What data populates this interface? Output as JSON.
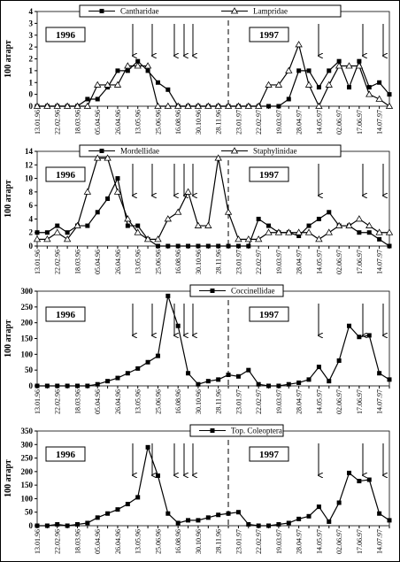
{
  "chart_data": [
    {
      "type": "line",
      "y_label": "100 атарт",
      "annotations": [
        "1996",
        "1997"
      ],
      "categories": [
        "13.01.96",
        null,
        "22.02.96",
        null,
        "18.03.96",
        null,
        "05.04.96",
        null,
        "26.04.96",
        null,
        "13.05.96",
        null,
        "25.06.96",
        null,
        "16.08.96",
        null,
        "30.10.96",
        null,
        "28.11.96",
        null,
        "23.01.97",
        null,
        "22.02.97",
        null,
        "19.03.97",
        null,
        "28.04.97",
        null,
        "14.05.97",
        null,
        "02.06.97",
        null,
        "17.06.97",
        null,
        "14.07.97",
        null
      ],
      "series": [
        {
          "name": "Cantharidae",
          "color": "#000000",
          "marker": "square",
          "values": [
            0,
            0,
            0,
            0,
            0,
            0.3,
            0.3,
            0.8,
            1.5,
            1.5,
            1.9,
            1.5,
            1,
            0.7,
            0,
            0,
            0,
            0,
            0,
            0,
            0,
            0,
            0,
            0,
            0,
            0.3,
            1.5,
            1.5,
            0.8,
            1.5,
            1.9,
            0.8,
            1.9,
            0.8,
            1,
            0.5
          ]
        },
        {
          "name": "Lampridae",
          "color": "#000000",
          "marker": "triangle",
          "values": [
            0,
            0,
            0,
            0,
            0,
            0,
            0.9,
            0.9,
            0.9,
            1.7,
            1.7,
            1.7,
            0,
            0,
            0,
            0,
            0,
            0,
            0,
            0,
            0,
            0,
            0,
            0.9,
            0.9,
            1.5,
            2.6,
            0.9,
            0,
            0.9,
            1.7,
            1.7,
            1.7,
            0.5,
            0.3,
            0
          ]
        }
      ],
      "ylim": [
        0,
        4
      ],
      "yticks": [
        0,
        {
          "value": 0.5,
          "label": "0"
        },
        1,
        {
          "value": 1.5,
          "label": "1"
        },
        2,
        {
          "value": 2.5,
          "label": "2"
        },
        3,
        {
          "value": 3.5,
          "label": "3"
        },
        4
      ]
    },
    {
      "type": "line",
      "y_label": "100 атарт",
      "annotations": [
        "1996",
        "1997"
      ],
      "categories": [
        "13.01.96",
        null,
        "22.02.96",
        null,
        "18.03.96",
        null,
        "05.04.96",
        null,
        "26.04.96",
        null,
        "13.05.96",
        null,
        "25.06.96",
        null,
        "16.08.96",
        null,
        "30.10.96",
        null,
        "28.11.96",
        null,
        "23.01.97",
        null,
        "22.02.97",
        null,
        "19.03.97",
        null,
        "28.04.97",
        null,
        "14.05.97",
        null,
        "02.06.97",
        null,
        "17.06.97",
        null,
        "14.07.97",
        null
      ],
      "series": [
        {
          "name": "Mordellidae",
          "color": "#000000",
          "marker": "square",
          "values": [
            2,
            2,
            3,
            2,
            3,
            3,
            5,
            7,
            10,
            3,
            3,
            1,
            0,
            0,
            0,
            0,
            0,
            0,
            0,
            0,
            0,
            0,
            4,
            3,
            2,
            2,
            1.5,
            3,
            4,
            5,
            3,
            3,
            2,
            2,
            1,
            0
          ]
        },
        {
          "name": "Staphylinidae",
          "color": "#000000",
          "marker": "triangle",
          "values": [
            1,
            1,
            2,
            1,
            3,
            8,
            13,
            13,
            8,
            4,
            2,
            1,
            1,
            4,
            5,
            8,
            3,
            3,
            13,
            5,
            1,
            1,
            1,
            2,
            2,
            2,
            2,
            2,
            1,
            2,
            3,
            3,
            4,
            3,
            2,
            2
          ]
        }
      ],
      "ylim": [
        0,
        14
      ],
      "yticks": [
        0,
        2,
        4,
        6,
        8,
        10,
        12,
        14
      ]
    },
    {
      "type": "line",
      "y_label": "100 атарт",
      "annotations": [
        "1996",
        "1997"
      ],
      "categories": [
        "13.01.96",
        null,
        "22.02.96",
        null,
        "18.03.96",
        null,
        "05.04.96",
        null,
        "26.04.96",
        null,
        "13.05.96",
        null,
        "25.06.96",
        null,
        "16.08.96",
        null,
        "30.10.96",
        null,
        "28.11.96",
        null,
        "23.01.97",
        null,
        "22.02.97",
        null,
        "19.03.97",
        null,
        "28.04.97",
        null,
        "14.05.97",
        null,
        "02.06.97",
        null,
        "17.06.97",
        null,
        "14.07.97",
        null
      ],
      "series": [
        {
          "name": "Coccinellidae",
          "color": "#000000",
          "marker": "square",
          "values": [
            0,
            0,
            0,
            0,
            0,
            0,
            5,
            15,
            25,
            40,
            55,
            75,
            95,
            285,
            190,
            40,
            5,
            15,
            20,
            35,
            30,
            50,
            5,
            0,
            0,
            5,
            10,
            20,
            60,
            15,
            80,
            190,
            155,
            160,
            40,
            20
          ]
        }
      ],
      "ylim": [
        0,
        300
      ],
      "yticks": [
        0,
        50,
        100,
        150,
        200,
        250,
        300
      ]
    },
    {
      "type": "line",
      "y_label": "100 атарт",
      "annotations": [
        "1996",
        "1997"
      ],
      "categories": [
        "13.01.96",
        null,
        "22.02.96",
        null,
        "18.03.96",
        null,
        "05.04.96",
        null,
        "26.04.96",
        null,
        "13.05.96",
        null,
        "25.06.96",
        null,
        "16.08.96",
        null,
        "30.10.96",
        null,
        "28.11.96",
        null,
        "23.01.97",
        null,
        "22.02.97",
        null,
        "19.03.97",
        null,
        "28.04.97",
        null,
        "14.05.97",
        null,
        "02.06.97",
        null,
        "17.06.97",
        null,
        "14.07.97",
        null
      ],
      "series": [
        {
          "name": "Top. Coleoptera",
          "color": "#000000",
          "marker": "square",
          "values": [
            0,
            0,
            5,
            0,
            5,
            10,
            30,
            45,
            60,
            80,
            105,
            290,
            185,
            45,
            10,
            20,
            20,
            30,
            40,
            45,
            50,
            5,
            0,
            0,
            5,
            10,
            25,
            35,
            70,
            15,
            85,
            195,
            165,
            170,
            45,
            20
          ]
        }
      ],
      "ylim": [
        0,
        350
      ],
      "yticks": [
        0,
        50,
        100,
        150,
        200,
        250,
        300,
        350
      ]
    }
  ]
}
